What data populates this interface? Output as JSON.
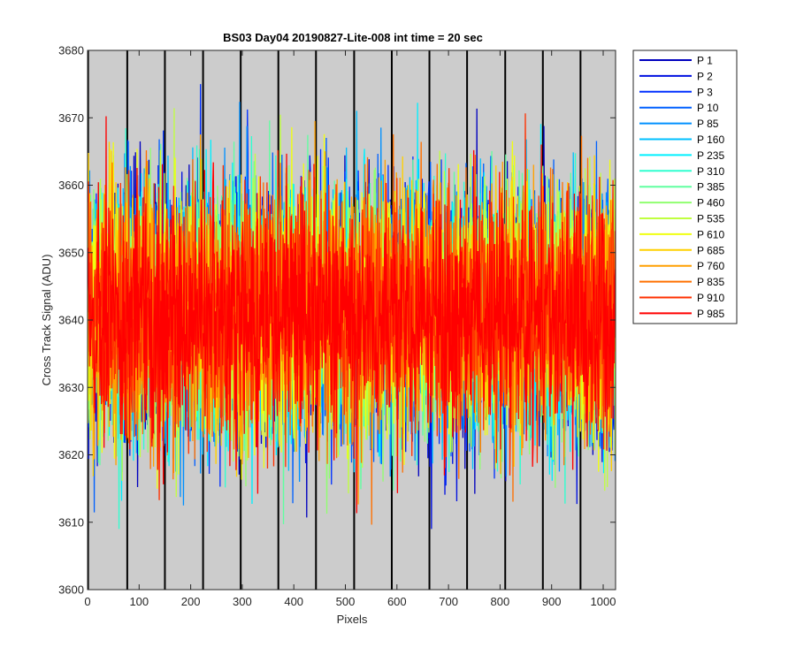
{
  "chart_data": {
    "type": "line",
    "title": "BS03 Day04 20190827-Lite-008 int time = 20 sec",
    "xlabel": "Pixels",
    "ylabel": "Cross Track Signal (ADU)",
    "xlim": [
      0,
      1024
    ],
    "ylim": [
      3600,
      3680
    ],
    "xticks": [
      0,
      100,
      200,
      300,
      400,
      500,
      600,
      700,
      800,
      900,
      1000
    ],
    "yticks": [
      3600,
      3610,
      3620,
      3630,
      3640,
      3650,
      3660,
      3670,
      3680
    ],
    "grid": false,
    "legend_position": "outside-right",
    "background_color": "#cccccc",
    "boundaries_x": [
      1,
      77,
      150,
      224,
      297,
      370,
      443,
      517,
      590,
      663,
      736,
      810,
      883,
      956
    ],
    "boundary_color": "#000000",
    "center_y": 3641,
    "spread_y": 9,
    "min_y": 3609,
    "max_y": 3675,
    "points_per_series": 1024,
    "series": [
      {
        "name": "P 1",
        "color": "#0000bf"
      },
      {
        "name": "P 2",
        "color": "#0010e0"
      },
      {
        "name": "P 3",
        "color": "#0030ff"
      },
      {
        "name": "P 10",
        "color": "#0060ff"
      },
      {
        "name": "P 85",
        "color": "#0090ff"
      },
      {
        "name": "P 160",
        "color": "#00c0ff"
      },
      {
        "name": "P 235",
        "color": "#00f0ff"
      },
      {
        "name": "P 310",
        "color": "#30ffd0"
      },
      {
        "name": "P 385",
        "color": "#60ffa0"
      },
      {
        "name": "P 460",
        "color": "#90ff70"
      },
      {
        "name": "P 535",
        "color": "#c0ff40"
      },
      {
        "name": "P 610",
        "color": "#f0ff10"
      },
      {
        "name": "P 685",
        "color": "#ffd000"
      },
      {
        "name": "P 760",
        "color": "#ffa000"
      },
      {
        "name": "P 835",
        "color": "#ff7000"
      },
      {
        "name": "P 910",
        "color": "#ff3000"
      },
      {
        "name": "P 985",
        "color": "#ff0000"
      }
    ]
  }
}
